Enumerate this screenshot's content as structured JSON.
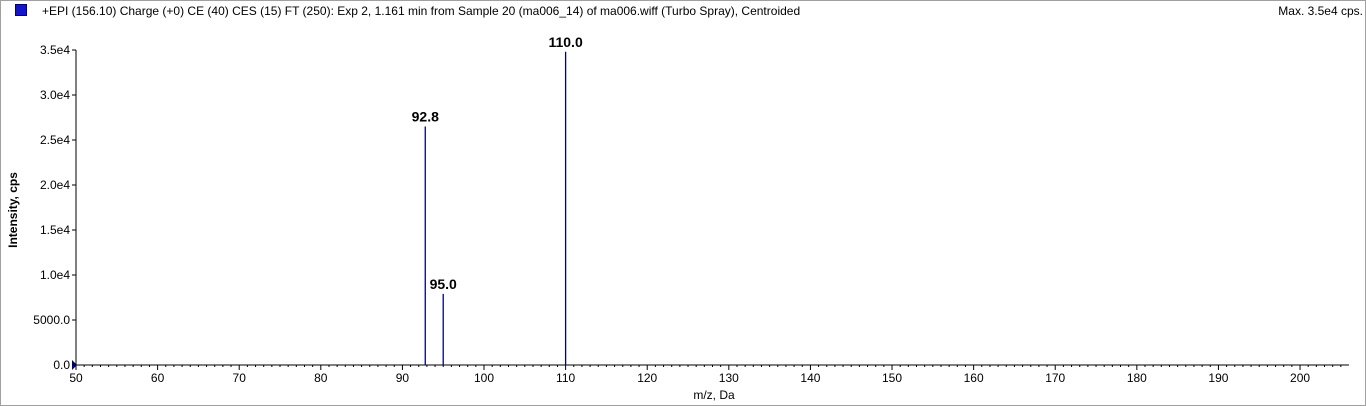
{
  "header": {
    "title": "+EPI (156.10) Charge (+0) CE (40) CES (15) FT (250): Exp 2, 1.161 min from Sample 20 (ma006_14) of ma006.wiff (Turbo Spray), Centroided",
    "max_label": "Max. 3.5e4 cps.",
    "legend_color": "#1414c8"
  },
  "chart_data": {
    "type": "bar",
    "xlabel": "m/z, Da",
    "ylabel": "Intensity, cps",
    "xlim": [
      50,
      206
    ],
    "ylim": [
      0,
      35000
    ],
    "x_ticks": [
      "50",
      "60",
      "70",
      "80",
      "90",
      "100",
      "110",
      "120",
      "130",
      "140",
      "150",
      "160",
      "170",
      "180",
      "190",
      "200"
    ],
    "y_ticks": [
      "0.0",
      "5000.0",
      "1.0e4",
      "1.5e4",
      "2.0e4",
      "2.5e4",
      "3.0e4",
      "3.5e4"
    ],
    "y_tick_values": [
      0,
      5000,
      10000,
      15000,
      20000,
      25000,
      30000,
      35000
    ],
    "peaks": [
      {
        "x": 92.8,
        "y": 26500,
        "label": "92.8"
      },
      {
        "x": 95.0,
        "y": 7900,
        "label": "95.0"
      },
      {
        "x": 110.0,
        "y": 34800,
        "label": "110.0"
      }
    ],
    "peak_color": "#000080",
    "grid": false
  }
}
